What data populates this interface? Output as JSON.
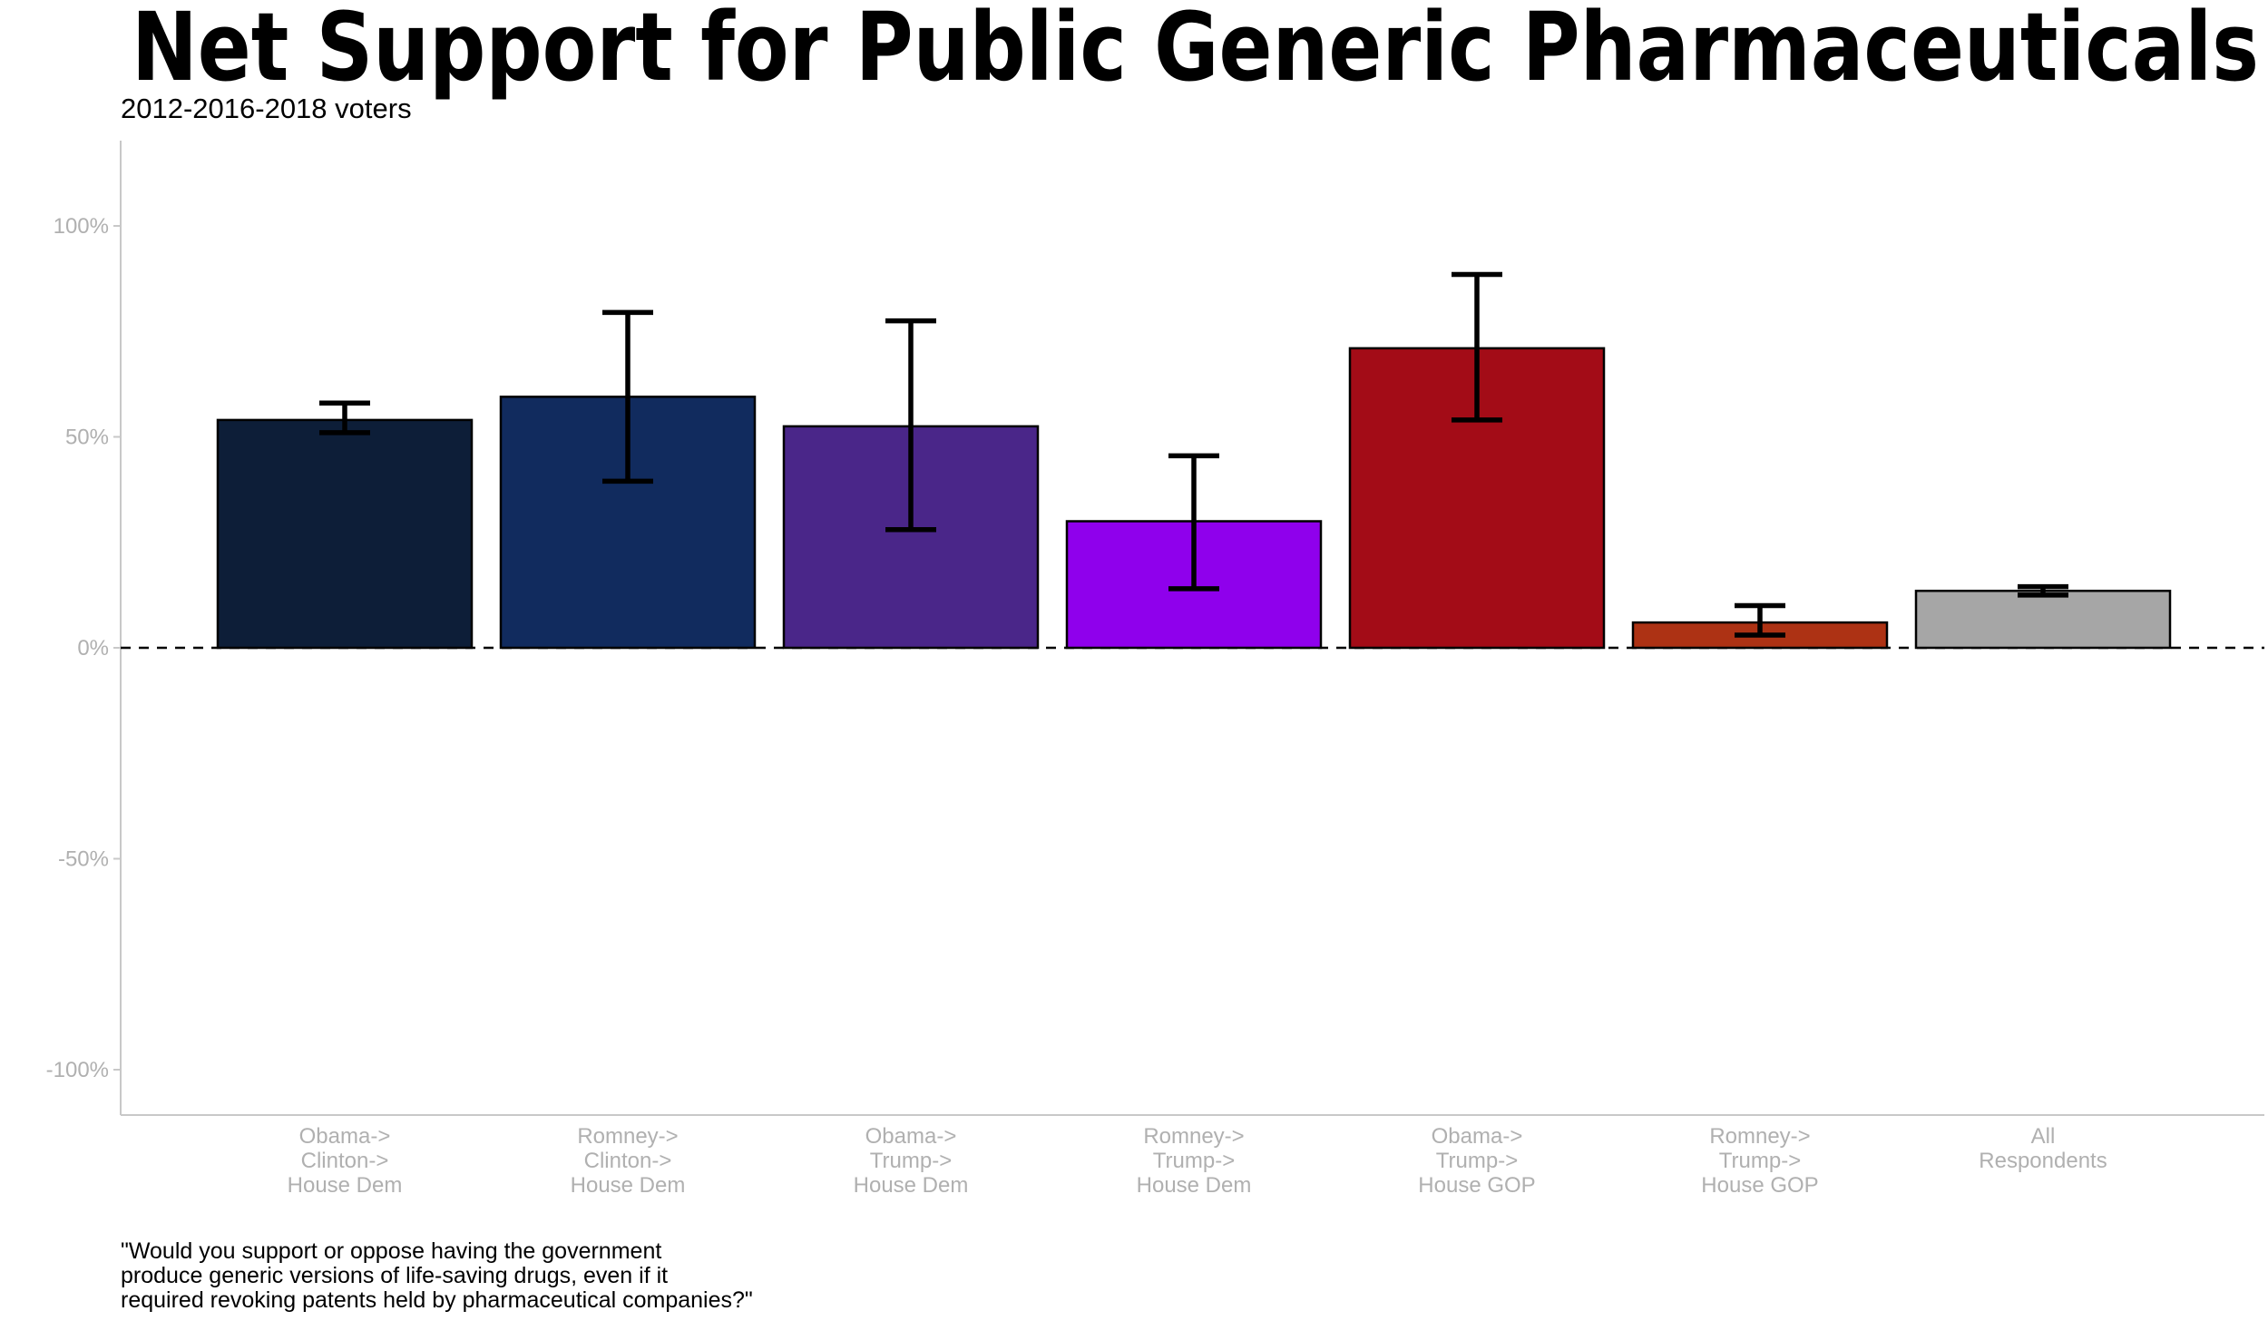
{
  "chart_data": {
    "type": "bar",
    "title": "Net Support for Public Generic Pharmaceuticals",
    "subtitle": "2012-2016-2018 voters",
    "caption_lines": [
      "\"Would you support or oppose having the government",
      "produce generic versions of life-saving drugs, even if it",
      "required revoking patents held by pharmaceutical companies?\""
    ],
    "ylim": [
      -110,
      120
    ],
    "yticks": [
      100,
      50,
      0,
      -50,
      -100
    ],
    "ytick_labels": [
      "100%",
      "50%",
      "0%",
      "-50%",
      "-100%"
    ],
    "reference_line": 0,
    "grid": false,
    "categories": [
      {
        "lines": [
          "Obama->",
          "Clinton->",
          "House Dem"
        ],
        "value": 54,
        "err_low": 51,
        "err_high": 58,
        "color": "#0d1e38"
      },
      {
        "lines": [
          "Romney->",
          "Clinton->",
          "House Dem"
        ],
        "value": 59.5,
        "err_low": 39.5,
        "err_high": 79.5,
        "color": "#112b5e"
      },
      {
        "lines": [
          "Obama->",
          "Trump->",
          "House Dem"
        ],
        "value": 52.5,
        "err_low": 28,
        "err_high": 77.5,
        "color": "#4a2689"
      },
      {
        "lines": [
          "Romney->",
          "Trump->",
          "House Dem"
        ],
        "value": 30,
        "err_low": 14,
        "err_high": 45.5,
        "color": "#8f00ec"
      },
      {
        "lines": [
          "Obama->",
          "Trump->",
          "House GOP"
        ],
        "value": 71,
        "err_low": 54,
        "err_high": 88.5,
        "color": "#a30c17"
      },
      {
        "lines": [
          "Romney->",
          "Trump->",
          "House GOP"
        ],
        "value": 6,
        "err_low": 3,
        "err_high": 10,
        "color": "#ad3214"
      },
      {
        "lines": [
          "All",
          "Respondents"
        ],
        "value": 13.5,
        "err_low": 12.5,
        "err_high": 14.5,
        "color": "#a6a6a6"
      }
    ]
  }
}
